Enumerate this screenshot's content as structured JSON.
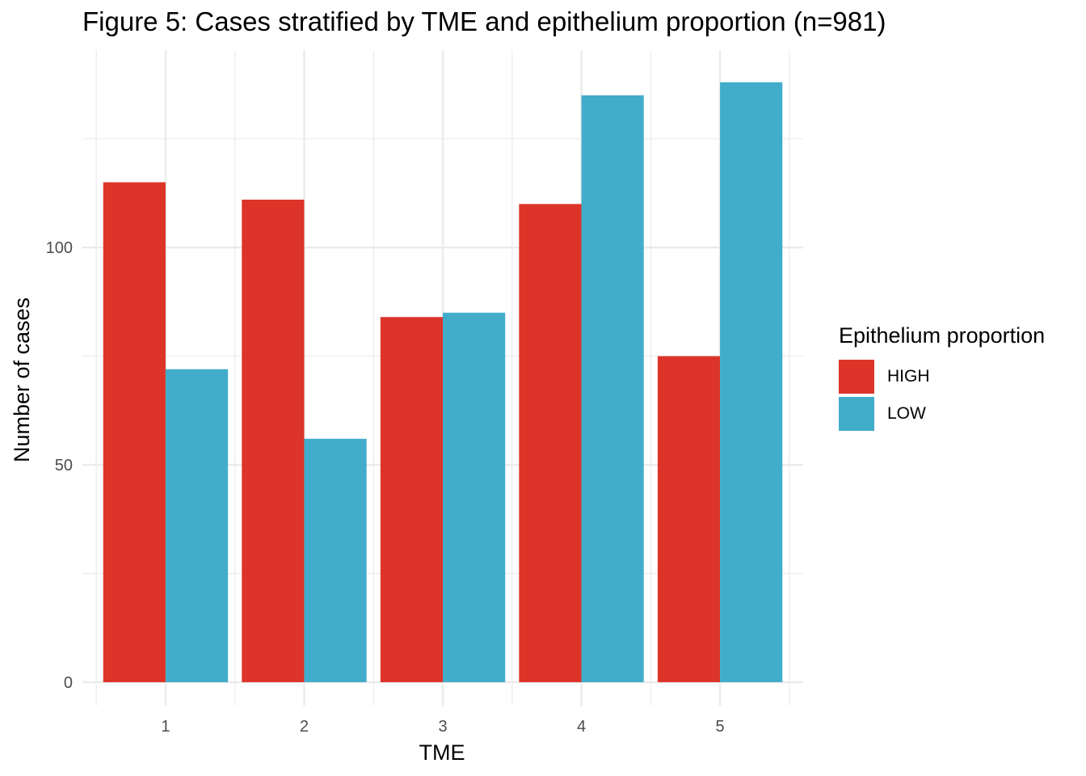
{
  "chart_data": {
    "type": "bar",
    "title": "Figure 5: Cases stratified by TME and epithelium proportion (n=981)",
    "xlabel": "TME",
    "ylabel": "Number of cases",
    "categories": [
      "1",
      "2",
      "3",
      "4",
      "5"
    ],
    "series": [
      {
        "name": "HIGH",
        "color": "#dd3429",
        "values": [
          115,
          111,
          84,
          110,
          75
        ]
      },
      {
        "name": "LOW",
        "color": "#42adcb",
        "values": [
          72,
          56,
          85,
          135,
          138
        ]
      }
    ],
    "ylim": [
      -5.4,
      145.4
    ],
    "yticks": [
      0,
      50,
      100
    ],
    "grid": true,
    "legend": {
      "title": "Epithelium proportion",
      "position": "right"
    }
  }
}
